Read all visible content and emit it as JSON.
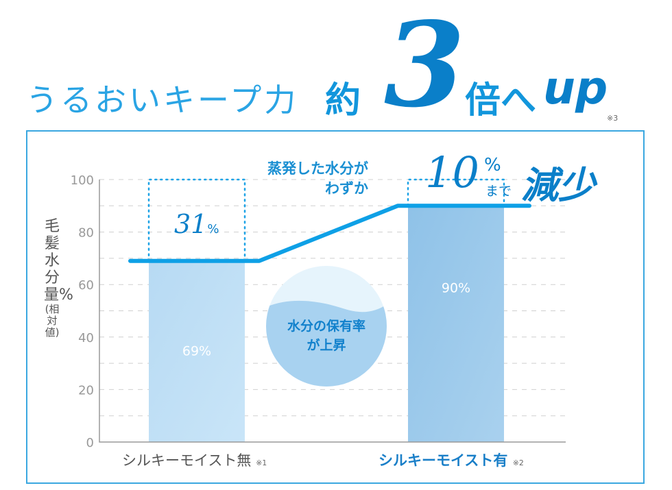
{
  "header": {
    "title_main": "うるおいキープ力",
    "title_yaku": "約",
    "title_number": "3",
    "title_bai": "倍へ",
    "title_up": "up",
    "title_note": "※3"
  },
  "chart_data": {
    "type": "bar",
    "categories": [
      "シルキーモイスト無",
      "シルキーモイスト有"
    ],
    "category_notes": [
      "※1",
      "※2"
    ],
    "values": [
      69,
      90
    ],
    "value_labels": [
      "69%",
      "90%"
    ],
    "ylabel": "毛髪水分量%",
    "ylabel_sub": "(相対値)",
    "ylim": [
      0,
      100
    ],
    "yticks": [
      "0",
      "20",
      "40",
      "60",
      "80",
      "100"
    ],
    "grid": true,
    "bar_colors": [
      "#b7daf3",
      "#8fc2e8"
    ],
    "line_color": "#0ea0e6",
    "annotations": {
      "diff_value": "31",
      "diff_unit": "%",
      "evap_line1": "蒸発した水分が",
      "evap_line2": "わずか",
      "evap_value": "10",
      "evap_unit": "%",
      "evap_made": "まで",
      "evap_reduce": "減少",
      "circle_line1": "水分の保有率",
      "circle_line2": "が上昇"
    }
  }
}
